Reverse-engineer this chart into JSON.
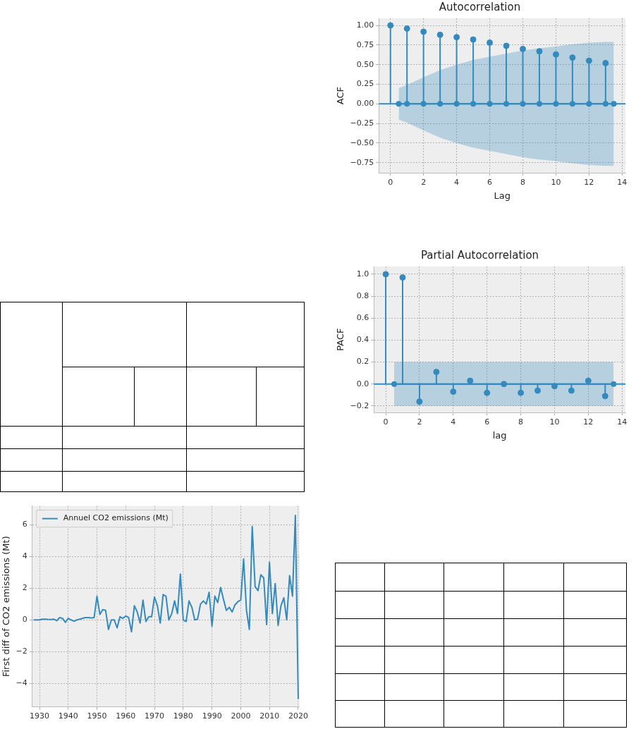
{
  "chart_data": [
    {
      "type": "lollipop",
      "title": "Autocorrelation",
      "xlabel": "Lag",
      "ylabel": "ACF",
      "x": [
        0,
        1,
        2,
        3,
        4,
        5,
        6,
        7,
        8,
        9,
        10,
        11,
        12,
        13
      ],
      "marker": "circle",
      "grid": true,
      "series": [
        {
          "color": "#348abd",
          "values": [
            1,
            0.96,
            0.92,
            0.88,
            0.85,
            0.82,
            0.78,
            0.74,
            0.7,
            0.67,
            0.63,
            0.59,
            0.55,
            0.52
          ]
        },
        {
          "type": "line",
          "color": "#348abd",
          "x": [
            0.5,
            1,
            2,
            3,
            4,
            5,
            6,
            7,
            8,
            9,
            10,
            11,
            12,
            13,
            13.5
          ],
          "values": [
            0,
            0,
            0,
            0,
            0,
            0,
            0,
            0,
            0,
            0,
            0,
            0,
            0,
            0,
            0
          ],
          "lower": [
            -0.2,
            -0.24,
            -0.34,
            -0.43,
            -0.5,
            -0.56,
            -0.6,
            -0.64,
            -0.68,
            -0.71,
            -0.73,
            -0.76,
            -0.78,
            -0.79,
            -0.79
          ],
          "upper": [
            0.2,
            0.24,
            0.34,
            0.43,
            0.5,
            0.56,
            0.6,
            0.64,
            0.68,
            0.71,
            0.73,
            0.76,
            0.78,
            0.79,
            0.79
          ]
        }
      ],
      "ref_lines": [
        {
          "axis": "y",
          "value": 0,
          "color": "#348abd"
        }
      ],
      "xlim": [
        -0.7,
        14.2
      ],
      "xticks": [
        0,
        2,
        4,
        6,
        8,
        10,
        12,
        14
      ],
      "ylim": [
        -0.88,
        1.09
      ],
      "yticks": [
        {
          "value": -0.75,
          "label": "−0.75"
        },
        {
          "value": -0.5,
          "label": "−0.50"
        },
        {
          "value": -0.25,
          "label": "−0.25"
        },
        {
          "value": 0,
          "label": "0.00"
        },
        {
          "value": 0.25,
          "label": "0.25"
        },
        {
          "value": 0.5,
          "label": "0.50"
        },
        {
          "value": 0.75,
          "label": "0.75"
        },
        {
          "value": 1,
          "label": "1.00"
        }
      ]
    },
    {
      "type": "lollipop",
      "title": "Partial Autocorrelation",
      "xlabel": "lag",
      "ylabel": "PACF",
      "x": [
        0,
        1,
        2,
        3,
        4,
        5,
        6,
        7,
        8,
        9,
        10,
        11,
        12,
        13
      ],
      "marker": "circle",
      "grid": true,
      "series": [
        {
          "color": "#348abd",
          "values": [
            1,
            0.97,
            -0.16,
            0.11,
            -0.07,
            0.03,
            -0.08,
            0,
            -0.08,
            -0.06,
            -0.02,
            -0.06,
            0.03,
            -0.11
          ]
        },
        {
          "type": "line",
          "color": "#348abd",
          "x": [
            0.5,
            13.5
          ],
          "values": [
            0,
            0
          ],
          "lower": [
            -0.2,
            -0.2
          ],
          "upper": [
            0.2,
            0.2
          ]
        }
      ],
      "ref_lines": [
        {
          "axis": "y",
          "value": 0,
          "color": "#348abd"
        }
      ],
      "xlim": [
        -0.7,
        14.2
      ],
      "xticks": [
        0,
        2,
        4,
        6,
        8,
        10,
        12,
        14
      ],
      "ylim": [
        -0.26,
        1.07
      ],
      "yticks": [
        {
          "value": -0.2,
          "label": "−0.2"
        },
        {
          "value": 0,
          "label": "0.0"
        },
        {
          "value": 0.2,
          "label": "0.2"
        },
        {
          "value": 0.4,
          "label": "0.4"
        },
        {
          "value": 0.6,
          "label": "0.6"
        },
        {
          "value": 0.8,
          "label": "0.8"
        },
        {
          "value": 1,
          "label": "1.0"
        }
      ]
    },
    {
      "type": "line",
      "ylabel": "First diff of CO2 emissions (Mt)",
      "legend": "top left",
      "grid": true,
      "x": [
        1928,
        1929,
        1930,
        1931,
        1932,
        1933,
        1934,
        1935,
        1936,
        1937,
        1938,
        1939,
        1940,
        1941,
        1942,
        1943,
        1944,
        1945,
        1946,
        1947,
        1948,
        1949,
        1950,
        1951,
        1952,
        1953,
        1954,
        1955,
        1956,
        1957,
        1958,
        1959,
        1960,
        1961,
        1962,
        1963,
        1964,
        1965,
        1966,
        1967,
        1968,
        1969,
        1970,
        1971,
        1972,
        1973,
        1974,
        1975,
        1976,
        1977,
        1978,
        1979,
        1980,
        1981,
        1982,
        1983,
        1984,
        1985,
        1986,
        1987,
        1988,
        1989,
        1990,
        1991,
        1992,
        1993,
        1994,
        1995,
        1996,
        1997,
        1998,
        1999,
        2000,
        2001,
        2002,
        2003,
        2004,
        2005,
        2006,
        2007,
        2008,
        2009,
        2010,
        2011,
        2012,
        2013,
        2014,
        2015,
        2016,
        2017,
        2018,
        2019,
        2020
      ],
      "series": [
        {
          "name": "Annuel CO2 emissions (Mt)",
          "color": "#348abd",
          "values": [
            0,
            0,
            0,
            0.05,
            0.05,
            0.03,
            0.02,
            0.05,
            -0.05,
            0.15,
            0.1,
            -0.15,
            0.1,
            0,
            -0.08,
            0,
            0.05,
            0.1,
            0.15,
            0.15,
            0.12,
            0.15,
            1.5,
            0.35,
            0.65,
            0.6,
            -0.6,
            0,
            0,
            -0.5,
            0.2,
            0.1,
            0.25,
            0.15,
            -0.75,
            0.9,
            0.5,
            -0.2,
            1.25,
            -0.1,
            0.2,
            0.2,
            1.45,
            0.9,
            -0.2,
            1.6,
            1.5,
            0,
            0.4,
            1.2,
            0.4,
            2.9,
            0,
            -0.1,
            1.2,
            0.8,
            0,
            0.05,
            1,
            1.2,
            1,
            1.75,
            -0.4,
            1.5,
            1.1,
            2.05,
            1.3,
            0.6,
            0.8,
            0.5,
            0.95,
            1.15,
            1.25,
            3.85,
            0.6,
            -0.6,
            5.9,
            2.1,
            1.85,
            2.85,
            2.65,
            -0.3,
            3.65,
            0.4,
            2.3,
            -0.35,
            0.9,
            1.4,
            0,
            2.8,
            1.5,
            6.6,
            -5
          ]
        }
      ],
      "xlim": [
        1927.5,
        2020.5
      ],
      "xticks": [
        1930,
        1940,
        1950,
        1960,
        1970,
        1980,
        1990,
        2000,
        2010,
        2020
      ],
      "ylim": [
        -5.5,
        7.2
      ],
      "yticks": [
        {
          "value": -4,
          "label": "−4"
        },
        {
          "value": -2,
          "label": "−2"
        },
        {
          "value": 0,
          "label": "0"
        },
        {
          "value": 2,
          "label": "2"
        },
        {
          "value": 4,
          "label": "4"
        },
        {
          "value": 6,
          "label": "6"
        }
      ]
    }
  ]
}
